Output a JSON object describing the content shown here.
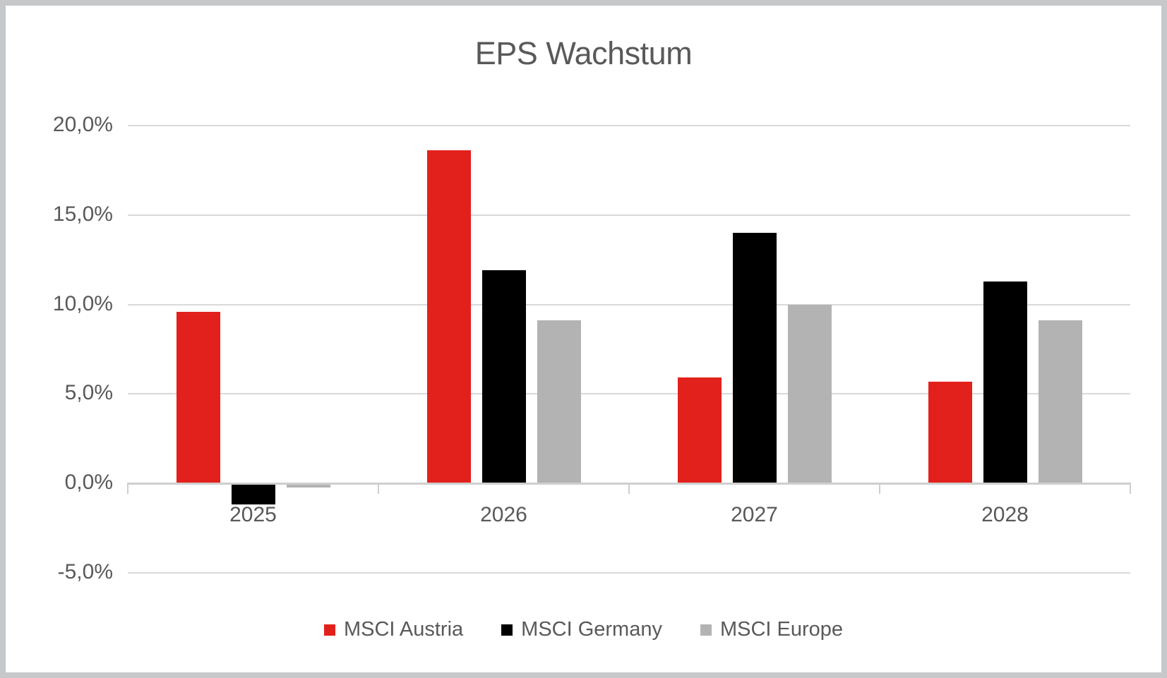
{
  "chart_data": {
    "type": "bar",
    "title": "EPS Wachstum",
    "categories": [
      "2025",
      "2026",
      "2027",
      "2028"
    ],
    "series": [
      {
        "name": "MSCI Austria",
        "color": "#e2211c",
        "values": [
          9.6,
          18.6,
          5.9,
          5.7
        ]
      },
      {
        "name": "MSCI Germany",
        "color": "#000000",
        "values": [
          -1.2,
          11.9,
          14.0,
          11.3
        ]
      },
      {
        "name": "MSCI Europe",
        "color": "#b3b3b3",
        "values": [
          -0.25,
          9.1,
          10.0,
          9.1
        ]
      }
    ],
    "y_axis": {
      "min": -5,
      "max": 20,
      "ticks": [
        {
          "label": "20,0%",
          "value": 20
        },
        {
          "label": "15,0%",
          "value": 15
        },
        {
          "label": "10,0%",
          "value": 10
        },
        {
          "label": "5,0%",
          "value": 5
        },
        {
          "label": "0,0%",
          "value": 0
        },
        {
          "label": "-5,0%",
          "value": -5
        }
      ]
    },
    "xlabel": "",
    "ylabel": "",
    "grid": true,
    "legend_position": "bottom",
    "value_format": "percent-comma-decimal"
  },
  "styles": {
    "title_color": "#595959",
    "axis_label_color": "#595959",
    "gridline_color": "#d9d9d9",
    "axis_line_color": "#cfcece",
    "frame_color": "#c6c8ca",
    "background": "#ffffff"
  }
}
